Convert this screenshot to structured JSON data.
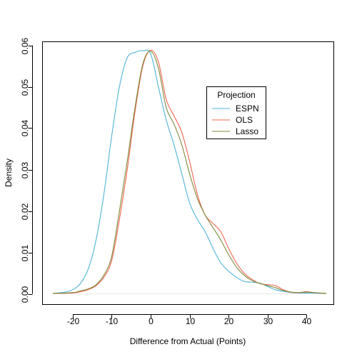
{
  "chart_data": {
    "type": "line",
    "title": "",
    "xlabel": "Difference from Actual (Points)",
    "ylabel": "Density",
    "xlim": [
      -25,
      45
    ],
    "ylim": [
      0,
      0.06
    ],
    "x_ticks": [
      -20,
      -10,
      0,
      10,
      20,
      30,
      40
    ],
    "x_tick_labels": [
      "-20",
      "-10",
      "0",
      "10",
      "20",
      "30",
      "40"
    ],
    "y_ticks": [
      0.0,
      0.01,
      0.02,
      0.03,
      0.04,
      0.05,
      0.06
    ],
    "y_tick_labels": [
      "0.00",
      "0.01",
      "0.02",
      "0.03",
      "0.04",
      "0.05",
      "0.06"
    ],
    "grid": false,
    "legend": {
      "title": "Projection",
      "placement": "top-right",
      "entries": [
        "ESPN",
        "OLS",
        "Lasso"
      ]
    },
    "series": [
      {
        "name": "ESPN",
        "color": "#4FB3D9",
        "points": [
          [
            -25,
            0.0001
          ],
          [
            -22,
            0.0004
          ],
          [
            -20,
            0.001
          ],
          [
            -18,
            0.0025
          ],
          [
            -16,
            0.006
          ],
          [
            -14,
            0.013
          ],
          [
            -12,
            0.024
          ],
          [
            -10,
            0.038
          ],
          [
            -8,
            0.05
          ],
          [
            -6,
            0.057
          ],
          [
            -4,
            0.0583
          ],
          [
            -2,
            0.0587
          ],
          [
            0,
            0.058
          ],
          [
            2,
            0.05
          ],
          [
            4,
            0.042
          ],
          [
            6,
            0.036
          ],
          [
            8,
            0.029
          ],
          [
            10,
            0.022
          ],
          [
            12,
            0.018
          ],
          [
            14,
            0.015
          ],
          [
            16,
            0.011
          ],
          [
            18,
            0.0075
          ],
          [
            20,
            0.0055
          ],
          [
            22,
            0.004
          ],
          [
            24,
            0.003
          ],
          [
            26,
            0.0028
          ],
          [
            28,
            0.0026
          ],
          [
            30,
            0.0018
          ],
          [
            32,
            0.001
          ],
          [
            34,
            0.0006
          ],
          [
            36,
            0.0003
          ],
          [
            38,
            0.0002
          ],
          [
            40,
            0.0002
          ],
          [
            45,
            0.0001
          ]
        ]
      },
      {
        "name": "OLS",
        "color": "#F0654E",
        "points": [
          [
            -25,
            0.0001
          ],
          [
            -20,
            0.0002
          ],
          [
            -18,
            0.0005
          ],
          [
            -16,
            0.001
          ],
          [
            -14,
            0.002
          ],
          [
            -12,
            0.004
          ],
          [
            -10,
            0.008
          ],
          [
            -8,
            0.018
          ],
          [
            -6,
            0.03
          ],
          [
            -4,
            0.044
          ],
          [
            -2,
            0.055
          ],
          [
            0,
            0.0588
          ],
          [
            2,
            0.056
          ],
          [
            4,
            0.047
          ],
          [
            6,
            0.043
          ],
          [
            8,
            0.039
          ],
          [
            10,
            0.032
          ],
          [
            12,
            0.024
          ],
          [
            14,
            0.019
          ],
          [
            16,
            0.017
          ],
          [
            18,
            0.015
          ],
          [
            20,
            0.011
          ],
          [
            22,
            0.0075
          ],
          [
            24,
            0.005
          ],
          [
            26,
            0.0035
          ],
          [
            28,
            0.0025
          ],
          [
            30,
            0.0022
          ],
          [
            32,
            0.002
          ],
          [
            34,
            0.001
          ],
          [
            36,
            0.0004
          ],
          [
            38,
            0.0003
          ],
          [
            40,
            0.0005
          ],
          [
            42,
            0.0003
          ],
          [
            45,
            0.0001
          ]
        ]
      },
      {
        "name": "Lasso",
        "color": "#7F8A3C",
        "points": [
          [
            -25,
            0.0001
          ],
          [
            -20,
            0.0003
          ],
          [
            -18,
            0.0007
          ],
          [
            -16,
            0.0012
          ],
          [
            -14,
            0.0022
          ],
          [
            -12,
            0.0045
          ],
          [
            -10,
            0.009
          ],
          [
            -8,
            0.02
          ],
          [
            -6,
            0.032
          ],
          [
            -4,
            0.045
          ],
          [
            -2,
            0.0555
          ],
          [
            0,
            0.0586
          ],
          [
            2,
            0.0545
          ],
          [
            4,
            0.045
          ],
          [
            6,
            0.041
          ],
          [
            8,
            0.036
          ],
          [
            10,
            0.029
          ],
          [
            12,
            0.023
          ],
          [
            14,
            0.019
          ],
          [
            16,
            0.016
          ],
          [
            18,
            0.013
          ],
          [
            20,
            0.0095
          ],
          [
            22,
            0.0065
          ],
          [
            24,
            0.0045
          ],
          [
            26,
            0.0032
          ],
          [
            28,
            0.0025
          ],
          [
            30,
            0.002
          ],
          [
            32,
            0.0015
          ],
          [
            34,
            0.0008
          ],
          [
            36,
            0.0004
          ],
          [
            38,
            0.0003
          ],
          [
            40,
            0.0004
          ],
          [
            42,
            0.0003
          ],
          [
            45,
            0.0001
          ]
        ]
      }
    ]
  }
}
